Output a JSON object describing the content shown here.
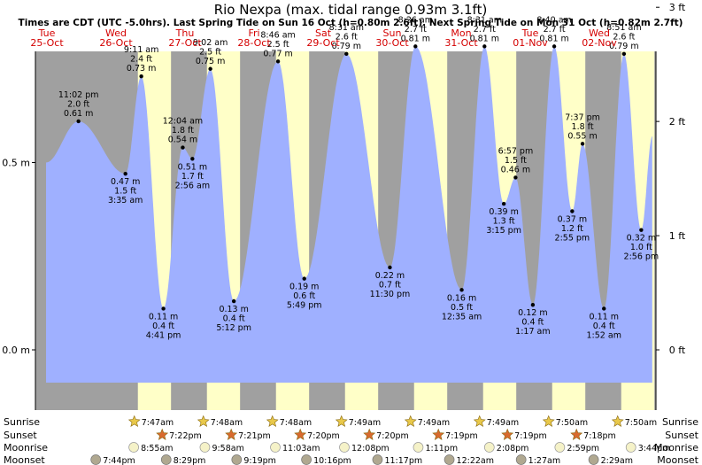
{
  "title": "Rio Nexpa (max. tidal range 0.93m 3.1ft)",
  "subtitle": "Times are CDT (UTC -5.0hrs). Last Spring Tide on Sun 16 Oct (h=0.80m 2.6ft). Next Spring Tide on Mon 31 Oct (h=0.82m 2.7ft)",
  "days": [
    {
      "dow": "Tue",
      "date": "25-Oct"
    },
    {
      "dow": "Wed",
      "date": "26-Oct"
    },
    {
      "dow": "Thu",
      "date": "27-Oct"
    },
    {
      "dow": "Fri",
      "date": "28-Oct"
    },
    {
      "dow": "Sat",
      "date": "29-Oct"
    },
    {
      "dow": "Sun",
      "date": "30-Oct"
    },
    {
      "dow": "Mon",
      "date": "31-Oct"
    },
    {
      "dow": "Tue",
      "date": "01-Nov"
    },
    {
      "dow": "Wed",
      "date": "02-Nov"
    }
  ],
  "chart_data": {
    "type": "area",
    "ylabel_left_unit": "m",
    "ylabel_right_unit": "ft",
    "left_ticks": [
      "0.0 m",
      "0.5 m"
    ],
    "right_ticks": [
      "0 ft",
      "1 ft",
      "2 ft",
      "3 ft"
    ],
    "ylim_m": [
      -0.17,
      1.48
    ],
    "series": [
      {
        "values": [
          {
            "t": 0.0,
            "h": 0.5,
            "labels": []
          },
          {
            "t": 0.47,
            "h": 0.61,
            "labels": [
              "11:02 pm",
              "2.0 ft",
              "0.61 m"
            ]
          },
          {
            "t": 1.15,
            "h": 0.47,
            "labels": [
              "0.47 m",
              "1.5 ft",
              "3:35 am"
            ]
          },
          {
            "t": 1.38,
            "h": 0.73,
            "labels": [
              "9:11 am",
              "2.4 ft",
              "0.73 m"
            ]
          },
          {
            "t": 1.7,
            "h": 0.11,
            "labels": [
              "0.11 m",
              "0.4 ft",
              "4:41 pm"
            ]
          },
          {
            "t": 1.98,
            "h": 0.54,
            "labels": [
              "12:04 am",
              "1.8 ft",
              "0.54 m"
            ]
          },
          {
            "t": 2.12,
            "h": 0.51,
            "labels": [
              "0.51 m",
              "1.7 ft",
              "2:56 am"
            ]
          },
          {
            "t": 2.38,
            "h": 0.75,
            "labels": [
              "9:02 am",
              "2.5 ft",
              "0.75 m"
            ]
          },
          {
            "t": 2.72,
            "h": 0.13,
            "labels": [
              "0.13 m",
              "0.4 ft",
              "5:12 pm"
            ]
          },
          {
            "t": 3.36,
            "h": 0.77,
            "labels": [
              "8:46 am",
              "2.5 ft",
              "0.77 m"
            ]
          },
          {
            "t": 3.74,
            "h": 0.19,
            "labels": [
              "0.19 m",
              "0.6 ft",
              "5:49 pm"
            ]
          },
          {
            "t": 4.35,
            "h": 0.79,
            "labels": [
              "8:31 am",
              "2.6 ft",
              "0.79 m"
            ]
          },
          {
            "t": 4.98,
            "h": 0.22,
            "labels": [
              "0.22 m",
              "0.7 ft",
              "11:30 pm"
            ]
          },
          {
            "t": 5.35,
            "h": 0.81,
            "labels": [
              "8:26 am",
              "2.7 ft",
              "0.81 m"
            ]
          },
          {
            "t": 6.02,
            "h": 0.16,
            "labels": [
              "0.16 m",
              "0.5 ft",
              "12:35 am"
            ]
          },
          {
            "t": 6.35,
            "h": 0.81,
            "labels": [
              "8:31 am",
              "2.7 ft",
              "0.81 m"
            ]
          },
          {
            "t": 6.63,
            "h": 0.39,
            "labels": [
              "0.39 m",
              "1.3 ft",
              "3:15 pm"
            ]
          },
          {
            "t": 6.8,
            "h": 0.46,
            "labels": [
              "6:57 pm",
              "1.5 ft",
              "0.46 m"
            ]
          },
          {
            "t": 7.05,
            "h": 0.12,
            "labels": [
              "0.12 m",
              "0.4 ft",
              "1:17 am"
            ]
          },
          {
            "t": 7.36,
            "h": 0.81,
            "labels": [
              "8:40 am",
              "2.7 ft",
              "0.81 m"
            ]
          },
          {
            "t": 7.62,
            "h": 0.37,
            "labels": [
              "0.37 m",
              "1.2 ft",
              "2:55 pm"
            ]
          },
          {
            "t": 7.77,
            "h": 0.55,
            "labels": [
              "7:37 pm",
              "1.8 ft",
              "0.55 m"
            ]
          },
          {
            "t": 8.08,
            "h": 0.11,
            "labels": [
              "0.11 m",
              "0.4 ft",
              "1:52 am"
            ]
          },
          {
            "t": 8.37,
            "h": 0.79,
            "labels": [
              "8:51 am",
              "2.6 ft",
              "0.79 m"
            ]
          },
          {
            "t": 8.62,
            "h": 0.32,
            "labels": [
              "0.32 m",
              "1.0 ft",
              "2:56 pm"
            ]
          },
          {
            "t": 8.78,
            "h": 0.57,
            "labels": []
          }
        ]
      }
    ],
    "daylight": [
      [
        1.33,
        1.81
      ],
      [
        2.33,
        2.81
      ],
      [
        3.33,
        3.81
      ],
      [
        4.33,
        4.81
      ],
      [
        5.33,
        5.81
      ],
      [
        6.33,
        6.81
      ],
      [
        7.33,
        7.81
      ],
      [
        8.33,
        8.81
      ]
    ],
    "colors": {
      "night": "#a0a0a0",
      "day": "#ffffc8",
      "water": "#9fb0ff",
      "sun": "#e8c84a",
      "sunset_star": "#d86a2e",
      "moonrise": "#f5f2c8",
      "moonset": "#b0a890",
      "day_label": "#d40000"
    }
  },
  "astro": {
    "labels": {
      "sunrise": "Sunrise",
      "sunset": "Sunset",
      "moonrise": "Moonrise",
      "moonset": "Moonset"
    },
    "sunrise": [
      {
        "t": 1.33,
        "time": "7:47am"
      },
      {
        "t": 2.33,
        "time": "7:48am"
      },
      {
        "t": 3.33,
        "time": "7:48am"
      },
      {
        "t": 4.33,
        "time": "7:49am"
      },
      {
        "t": 5.33,
        "time": "7:49am"
      },
      {
        "t": 6.33,
        "time": "7:49am"
      },
      {
        "t": 7.33,
        "time": "7:50am"
      },
      {
        "t": 8.33,
        "time": "7:50am"
      }
    ],
    "sunset": [
      {
        "t": 1.81,
        "time": "7:22pm"
      },
      {
        "t": 2.81,
        "time": "7:21pm"
      },
      {
        "t": 3.81,
        "time": "7:20pm"
      },
      {
        "t": 4.81,
        "time": "7:20pm"
      },
      {
        "t": 5.81,
        "time": "7:19pm"
      },
      {
        "t": 6.81,
        "time": "7:19pm"
      },
      {
        "t": 7.81,
        "time": "7:18pm"
      }
    ],
    "moonrise": [
      {
        "t": 1.45,
        "time": "8:55am"
      },
      {
        "t": 2.48,
        "time": "9:58am"
      },
      {
        "t": 3.5,
        "time": "11:03am"
      },
      {
        "t": 4.5,
        "time": "12:08pm"
      },
      {
        "t": 5.57,
        "time": "1:11pm"
      },
      {
        "t": 6.6,
        "time": "2:08pm"
      },
      {
        "t": 7.62,
        "time": "2:59pm"
      },
      {
        "t": 8.65,
        "time": "3:44pm"
      }
    ],
    "moonset": [
      {
        "t": 0.9,
        "time": "7:44pm"
      },
      {
        "t": 1.92,
        "time": "8:29pm"
      },
      {
        "t": 2.94,
        "time": "9:19pm"
      },
      {
        "t": 3.95,
        "time": "10:16pm"
      },
      {
        "t": 4.98,
        "time": "11:17pm"
      },
      {
        "t": 6.02,
        "time": "12:22am"
      },
      {
        "t": 7.06,
        "time": "1:27am"
      },
      {
        "t": 8.11,
        "time": "2:29am"
      }
    ]
  }
}
